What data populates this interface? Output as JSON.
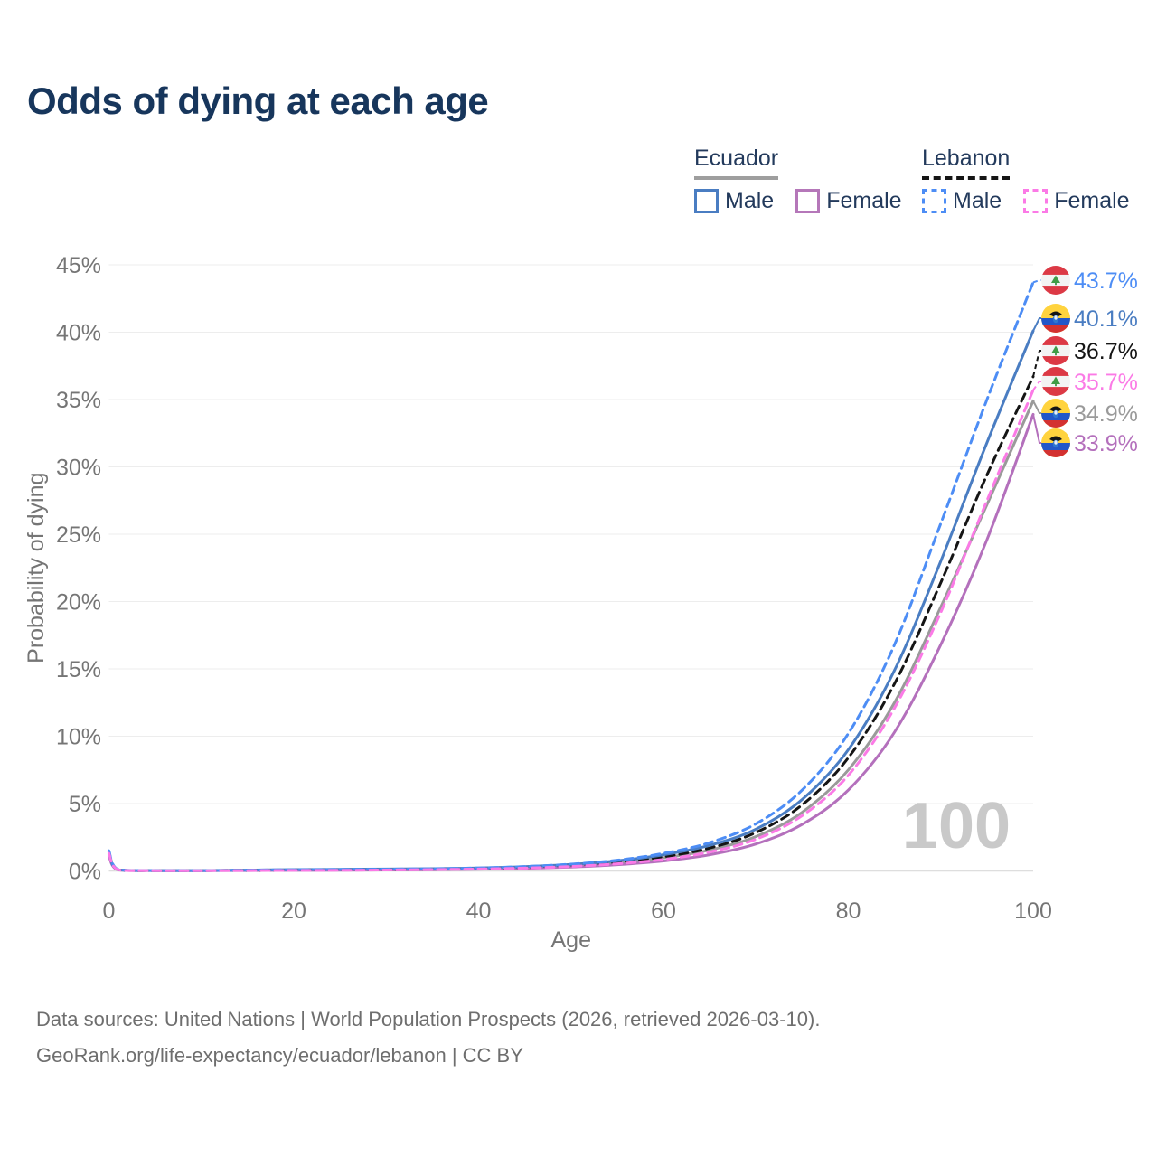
{
  "title": "Odds of dying at each age",
  "legend": {
    "groups": [
      {
        "title": "Ecuador",
        "line_style": "solid",
        "line_color": "#9e9e9e",
        "items": [
          {
            "label": "Male",
            "swatch_style": "solid",
            "swatch_color": "#4a7dc2"
          },
          {
            "label": "Female",
            "swatch_style": "solid",
            "swatch_color": "#b577b9"
          }
        ]
      },
      {
        "title": "Lebanon",
        "line_style": "dashed",
        "line_color": "#151515",
        "items": [
          {
            "label": "Male",
            "swatch_style": "dashed",
            "swatch_color": "#4d8df5"
          },
          {
            "label": "Female",
            "swatch_style": "dashed",
            "swatch_color": "#fb7ae6"
          }
        ]
      }
    ]
  },
  "chart_data": {
    "type": "line",
    "title": "Odds of dying at each age",
    "xlabel": "Age",
    "ylabel": "Probability of dying",
    "x_ticks": [
      "0",
      "20",
      "40",
      "60",
      "80",
      "100"
    ],
    "y_ticks": [
      "0%",
      "5%",
      "10%",
      "15%",
      "20%",
      "25%",
      "30%",
      "35%",
      "40%",
      "45%"
    ],
    "xlim": [
      0,
      100
    ],
    "ylim_pct": [
      0,
      45
    ],
    "grid": true,
    "legend_position": "top-right",
    "watermark": "100",
    "ages": [
      0,
      1,
      5,
      10,
      15,
      20,
      25,
      30,
      35,
      40,
      45,
      50,
      55,
      60,
      65,
      70,
      75,
      80,
      85,
      90,
      95,
      100
    ],
    "series": [
      {
        "id": "ecuador-both",
        "name": "Ecuador",
        "color": "#9a9a9a",
        "dashed": false,
        "flag": "ecuador",
        "end_label": "34.9%",
        "values": [
          1.2,
          0.08,
          0.03,
          0.03,
          0.05,
          0.07,
          0.09,
          0.11,
          0.13,
          0.17,
          0.25,
          0.39,
          0.61,
          0.97,
          1.55,
          2.55,
          4.35,
          7.5,
          12.5,
          19.6,
          27.2,
          34.9
        ]
      },
      {
        "id": "ecuador-female",
        "name": "Ecuador Female",
        "color": "#b470bc",
        "dashed": false,
        "flag": "ecuador",
        "end_label": "33.9%",
        "values": [
          1.1,
          0.07,
          0.02,
          0.02,
          0.03,
          0.04,
          0.05,
          0.07,
          0.09,
          0.13,
          0.19,
          0.29,
          0.46,
          0.74,
          1.2,
          2.0,
          3.45,
          6.0,
          10.3,
          16.8,
          24.6,
          33.9
        ]
      },
      {
        "id": "lebanon-both",
        "name": "Lebanon",
        "color": "#151515",
        "dashed": true,
        "flag": "lebanon",
        "end_label": "36.7%",
        "values": [
          1.4,
          0.09,
          0.03,
          0.03,
          0.05,
          0.07,
          0.09,
          0.11,
          0.13,
          0.18,
          0.27,
          0.42,
          0.66,
          1.05,
          1.7,
          2.85,
          4.9,
          8.4,
          13.9,
          21.4,
          29.4,
          36.7
        ]
      },
      {
        "id": "ecuador-male",
        "name": "Ecuador Male",
        "color": "#4a7dc2",
        "dashed": false,
        "flag": "ecuador",
        "end_label": "40.1%",
        "values": [
          1.3,
          0.09,
          0.03,
          0.03,
          0.06,
          0.1,
          0.12,
          0.14,
          0.17,
          0.22,
          0.32,
          0.48,
          0.75,
          1.2,
          1.9,
          3.1,
          5.3,
          9.0,
          14.9,
          23.0,
          31.8,
          40.1
        ]
      },
      {
        "id": "lebanon-male",
        "name": "Lebanon Male",
        "color": "#4d8df5",
        "dashed": true,
        "flag": "lebanon",
        "end_label": "43.7%",
        "values": [
          1.5,
          0.1,
          0.03,
          0.03,
          0.06,
          0.09,
          0.11,
          0.13,
          0.16,
          0.22,
          0.33,
          0.5,
          0.8,
          1.3,
          2.1,
          3.5,
          6.0,
          10.2,
          16.8,
          25.8,
          35.0,
          43.7
        ]
      },
      {
        "id": "lebanon-female",
        "name": "Lebanon Female",
        "color": "#fb7ae6",
        "dashed": true,
        "flag": "lebanon",
        "end_label": "35.7%",
        "values": [
          1.3,
          0.08,
          0.02,
          0.02,
          0.03,
          0.04,
          0.05,
          0.07,
          0.1,
          0.14,
          0.21,
          0.33,
          0.53,
          0.85,
          1.4,
          2.35,
          4.1,
          7.1,
          12.1,
          19.2,
          27.5,
          35.7
        ]
      }
    ],
    "flag_colors": {
      "lebanon": {
        "red": "#dc3945",
        "white": "#f3f3f3",
        "cedar_green": "#3f9c46"
      },
      "ecuador": {
        "yellow": "#ffd33e",
        "blue": "#2257c9",
        "red": "#d33131"
      }
    }
  },
  "footer": {
    "line1": "Data sources: United Nations | World Population Prospects (2026, retrieved 2026-03-10).",
    "line2": "GeoRank.org/life-expectancy/ecuador/lebanon | CC BY"
  }
}
